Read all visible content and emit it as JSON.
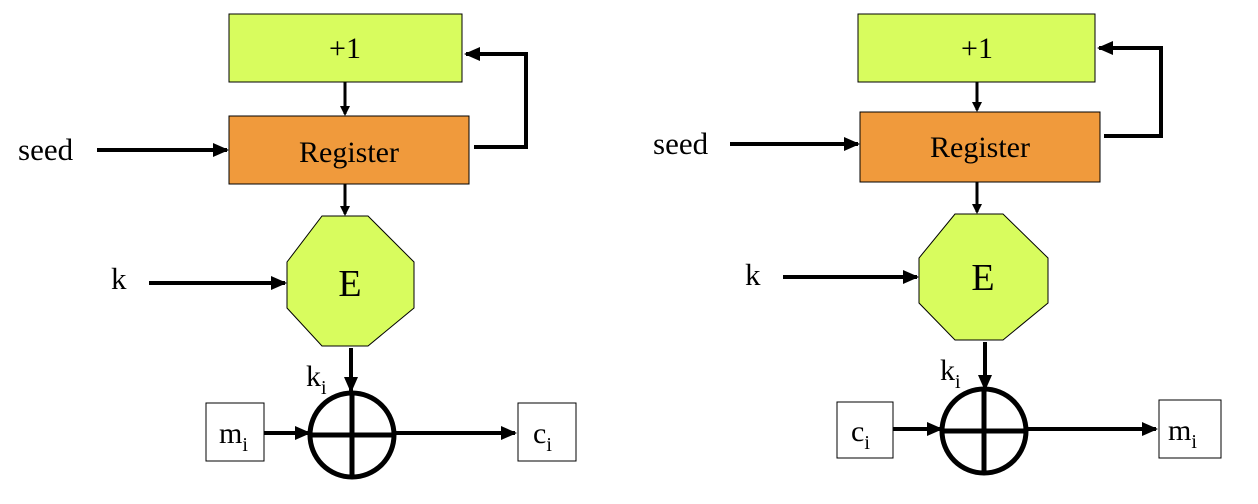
{
  "colors": {
    "increment_fill": "#d8fc5e",
    "register_fill": "#f09a3c",
    "encrypt_fill": "#d8fc5e",
    "stroke": "#000000"
  },
  "encrypt_diagram": {
    "increment_label": "+1",
    "register_label": "Register",
    "seed_label": "seed",
    "key_label": "k",
    "cipher_label": "E",
    "keystream": {
      "main": "k",
      "sub": "i"
    },
    "input": {
      "main": "m",
      "sub": "i"
    },
    "output": {
      "main": "c",
      "sub": "i"
    },
    "xor_icon": "xor-circle-plus"
  },
  "decrypt_diagram": {
    "increment_label": "+1",
    "register_label": "Register",
    "seed_label": "seed",
    "key_label": "k",
    "cipher_label": "E",
    "keystream": {
      "main": "k",
      "sub": "i"
    },
    "input": {
      "main": "c",
      "sub": "i"
    },
    "output": {
      "main": "m",
      "sub": "i"
    },
    "xor_icon": "xor-circle-plus"
  }
}
